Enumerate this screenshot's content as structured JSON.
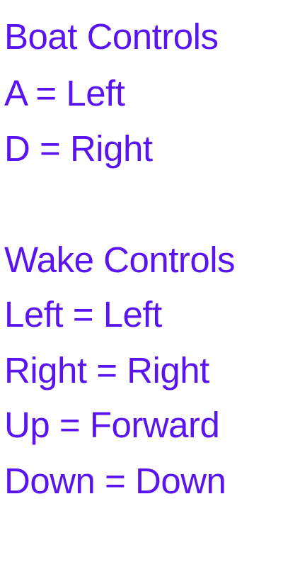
{
  "text_color": "#5a14f0",
  "background_color": "#ffffff",
  "boat_controls": {
    "heading": "Boat Controls",
    "lines": [
      "A = Left",
      "D = Right"
    ]
  },
  "wake_controls": {
    "heading": "Wake Controls",
    "lines": [
      "Left = Left",
      "Right = Right",
      "Up = Forward",
      "Down = Down"
    ]
  }
}
